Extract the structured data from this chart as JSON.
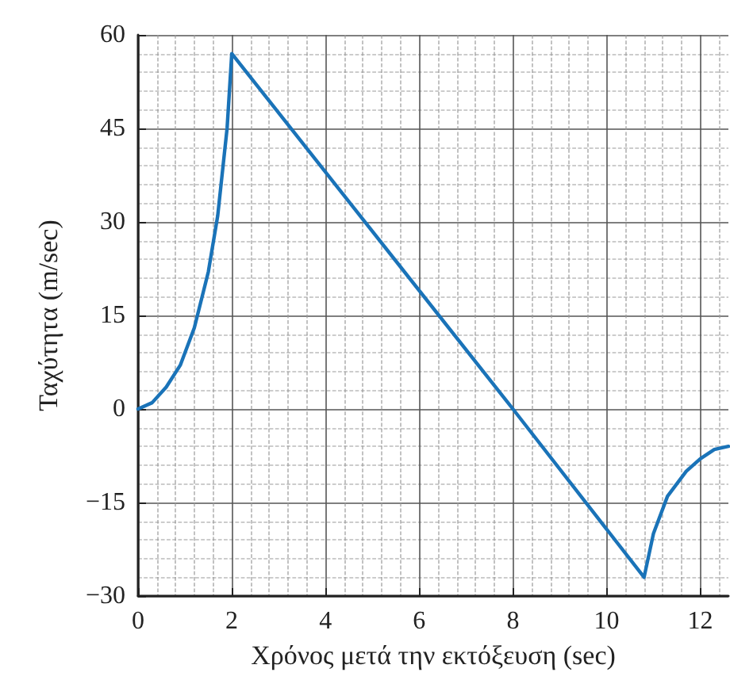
{
  "chart_data": {
    "type": "line",
    "xlabel": "Χρόνος μετά την εκτόξευση (sec)",
    "ylabel": "Ταχύτητα (m/sec)",
    "series": [
      {
        "color": "#1a73b8",
        "x": [
          0,
          0.3,
          0.6,
          0.9,
          1.2,
          1.5,
          1.7,
          1.9,
          2,
          8,
          10.8,
          11,
          11.3,
          11.7,
          12,
          12.3,
          12.6
        ],
        "values": [
          0,
          1,
          3.5,
          7,
          13,
          22,
          31,
          45,
          57,
          0,
          -27,
          -20,
          -14,
          -10,
          -8,
          -6.5,
          -6
        ]
      }
    ],
    "xlim": [
      0,
      12.6
    ],
    "xticks": [
      0,
      2,
      4,
      6,
      8,
      10,
      12
    ],
    "ylim": [
      -30,
      60
    ],
    "yticks": [
      -30,
      -15,
      0,
      15,
      30,
      45,
      60
    ],
    "grid": true,
    "marker": "none",
    "line_style": "solid"
  }
}
